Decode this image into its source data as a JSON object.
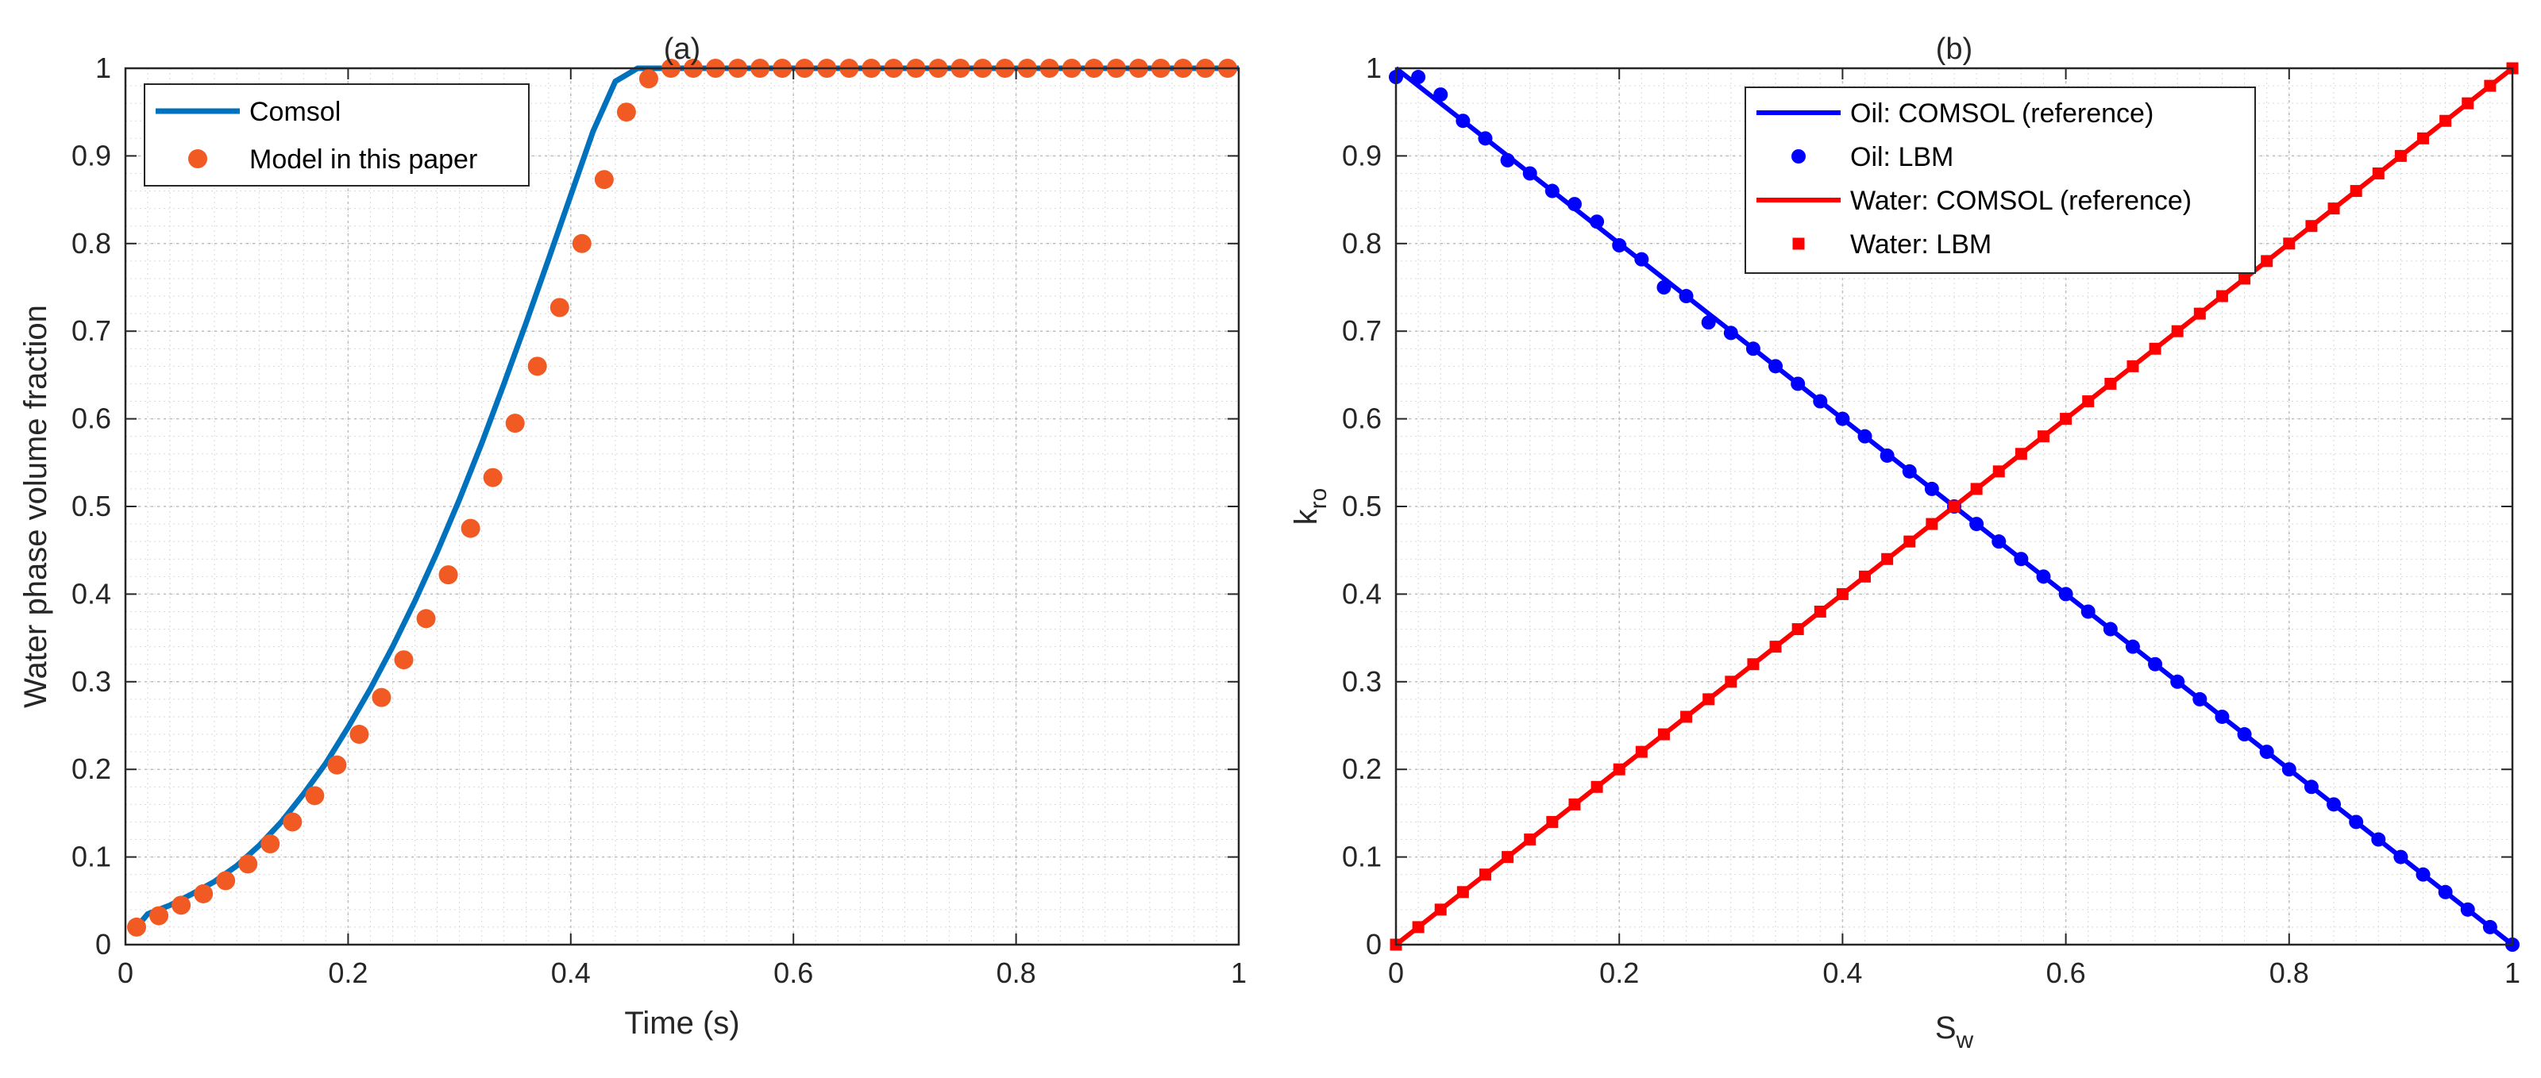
{
  "chart_data": [
    {
      "type": "line",
      "title": "(a)",
      "xlabel": "Time (s)",
      "ylabel": "Water phase volume fraction",
      "xlim": [
        0,
        1
      ],
      "ylim": [
        0,
        1
      ],
      "xticks": [
        0,
        0.2,
        0.4,
        0.6,
        0.8,
        1
      ],
      "xtick_labels": [
        "0",
        "0.2",
        "0.4",
        "0.6",
        "0.8",
        "1"
      ],
      "yticks": [
        0,
        0.1,
        0.2,
        0.3,
        0.4,
        0.5,
        0.6,
        0.7,
        0.8,
        0.9,
        1
      ],
      "ytick_labels": [
        "0",
        "0.1",
        "0.2",
        "0.3",
        "0.4",
        "0.5",
        "0.6",
        "0.7",
        "0.8",
        "0.9",
        "1"
      ],
      "grid": "major and minor, dotted",
      "legend_position": "top-left",
      "series": [
        {
          "name": "Comsol",
          "style": "line",
          "color": "#0072BD",
          "x": [
            0.01,
            0.02,
            0.04,
            0.06,
            0.08,
            0.1,
            0.12,
            0.14,
            0.16,
            0.18,
            0.2,
            0.22,
            0.24,
            0.26,
            0.28,
            0.3,
            0.32,
            0.34,
            0.36,
            0.38,
            0.4,
            0.42,
            0.44,
            0.46,
            0.47,
            0.48,
            0.5,
            0.6,
            0.8,
            1.0
          ],
          "y": [
            0.02,
            0.035,
            0.045,
            0.058,
            0.072,
            0.09,
            0.113,
            0.14,
            0.172,
            0.207,
            0.248,
            0.292,
            0.34,
            0.392,
            0.448,
            0.508,
            0.572,
            0.64,
            0.71,
            0.782,
            0.855,
            0.928,
            0.985,
            1.0,
            1.0,
            1.0,
            1.0,
            1.0,
            1.0,
            1.0
          ]
        },
        {
          "name": "Model in this paper",
          "style": "marker-circle",
          "color": "#F15A22",
          "x": [
            0.01,
            0.03,
            0.05,
            0.07,
            0.09,
            0.11,
            0.13,
            0.15,
            0.17,
            0.19,
            0.21,
            0.23,
            0.25,
            0.27,
            0.29,
            0.31,
            0.33,
            0.35,
            0.37,
            0.39,
            0.41,
            0.43,
            0.45,
            0.47,
            0.49,
            0.51,
            0.53,
            0.55,
            0.57,
            0.59,
            0.61,
            0.63,
            0.65,
            0.67,
            0.69,
            0.71,
            0.73,
            0.75,
            0.77,
            0.79,
            0.81,
            0.83,
            0.85,
            0.87,
            0.89,
            0.91,
            0.93,
            0.95,
            0.97,
            0.99
          ],
          "y": [
            0.02,
            0.033,
            0.045,
            0.058,
            0.073,
            0.092,
            0.115,
            0.14,
            0.17,
            0.205,
            0.24,
            0.282,
            0.325,
            0.372,
            0.422,
            0.475,
            0.533,
            0.595,
            0.66,
            0.727,
            0.8,
            0.873,
            0.95,
            0.988,
            1.0,
            1.0,
            1.0,
            1.0,
            1.0,
            1.0,
            1.0,
            1.0,
            1.0,
            1.0,
            1.0,
            1.0,
            1.0,
            1.0,
            1.0,
            1.0,
            1.0,
            1.0,
            1.0,
            1.0,
            1.0,
            1.0,
            1.0,
            1.0,
            1.0,
            1.0
          ]
        }
      ]
    },
    {
      "type": "line",
      "title": "(b)",
      "xlabel": "S",
      "xlabel_sub": "w",
      "ylabel": "k",
      "ylabel_sub": "ro",
      "xlim": [
        0,
        1
      ],
      "ylim": [
        0,
        1
      ],
      "xticks": [
        0,
        0.2,
        0.4,
        0.6,
        0.8,
        1
      ],
      "xtick_labels": [
        "0",
        "0.2",
        "0.4",
        "0.6",
        "0.8",
        "1"
      ],
      "yticks": [
        0,
        0.1,
        0.2,
        0.3,
        0.4,
        0.5,
        0.6,
        0.7,
        0.8,
        0.9,
        1
      ],
      "ytick_labels": [
        "0",
        "0.1",
        "0.2",
        "0.3",
        "0.4",
        "0.5",
        "0.6",
        "0.7",
        "0.8",
        "0.9",
        "1"
      ],
      "grid": "major and minor, dotted",
      "legend_position": "top-center",
      "series": [
        {
          "name": "Oil: COMSOL (reference)",
          "style": "line",
          "color": "#0000FF",
          "x": [
            0,
            1
          ],
          "y": [
            1,
            0
          ]
        },
        {
          "name": "Oil: LBM",
          "style": "marker-circle",
          "color": "#0000FF",
          "x": [
            0.0,
            0.02,
            0.04,
            0.06,
            0.08,
            0.1,
            0.12,
            0.14,
            0.16,
            0.18,
            0.2,
            0.22,
            0.24,
            0.26,
            0.28,
            0.3,
            0.32,
            0.34,
            0.36,
            0.38,
            0.4,
            0.42,
            0.44,
            0.46,
            0.48,
            0.5,
            0.52,
            0.54,
            0.56,
            0.58,
            0.6,
            0.62,
            0.64,
            0.66,
            0.68,
            0.7,
            0.72,
            0.74,
            0.76,
            0.78,
            0.8,
            0.82,
            0.84,
            0.86,
            0.88,
            0.9,
            0.92,
            0.94,
            0.96,
            0.98,
            1.0
          ],
          "y": [
            0.99,
            0.99,
            0.97,
            0.94,
            0.92,
            0.895,
            0.88,
            0.86,
            0.845,
            0.825,
            0.798,
            0.782,
            0.75,
            0.74,
            0.71,
            0.698,
            0.68,
            0.66,
            0.64,
            0.62,
            0.6,
            0.58,
            0.558,
            0.54,
            0.52,
            0.5,
            0.48,
            0.46,
            0.44,
            0.42,
            0.4,
            0.38,
            0.36,
            0.34,
            0.32,
            0.3,
            0.28,
            0.26,
            0.24,
            0.22,
            0.2,
            0.18,
            0.16,
            0.14,
            0.12,
            0.1,
            0.08,
            0.06,
            0.04,
            0.02,
            0.0
          ]
        },
        {
          "name": "Water: COMSOL (reference)",
          "style": "line",
          "color": "#FF0000",
          "x": [
            0,
            1
          ],
          "y": [
            0,
            1
          ]
        },
        {
          "name": "Water: LBM",
          "style": "marker-square",
          "color": "#FF0000",
          "x": [
            0.0,
            0.02,
            0.04,
            0.06,
            0.08,
            0.1,
            0.12,
            0.14,
            0.16,
            0.18,
            0.2,
            0.22,
            0.24,
            0.26,
            0.28,
            0.3,
            0.32,
            0.34,
            0.36,
            0.38,
            0.4,
            0.42,
            0.44,
            0.46,
            0.48,
            0.5,
            0.52,
            0.54,
            0.56,
            0.58,
            0.6,
            0.62,
            0.64,
            0.66,
            0.68,
            0.7,
            0.72,
            0.74,
            0.76,
            0.78,
            0.8,
            0.82,
            0.84,
            0.86,
            0.88,
            0.9,
            0.92,
            0.94,
            0.96,
            0.98,
            1.0
          ],
          "y": [
            0.0,
            0.02,
            0.04,
            0.06,
            0.08,
            0.1,
            0.12,
            0.14,
            0.16,
            0.18,
            0.2,
            0.22,
            0.24,
            0.26,
            0.28,
            0.3,
            0.32,
            0.34,
            0.36,
            0.38,
            0.4,
            0.42,
            0.44,
            0.46,
            0.48,
            0.5,
            0.52,
            0.54,
            0.56,
            0.58,
            0.6,
            0.62,
            0.64,
            0.66,
            0.68,
            0.7,
            0.72,
            0.74,
            0.76,
            0.78,
            0.8,
            0.82,
            0.84,
            0.86,
            0.88,
            0.9,
            0.92,
            0.94,
            0.96,
            0.98,
            1.0
          ]
        }
      ]
    }
  ]
}
